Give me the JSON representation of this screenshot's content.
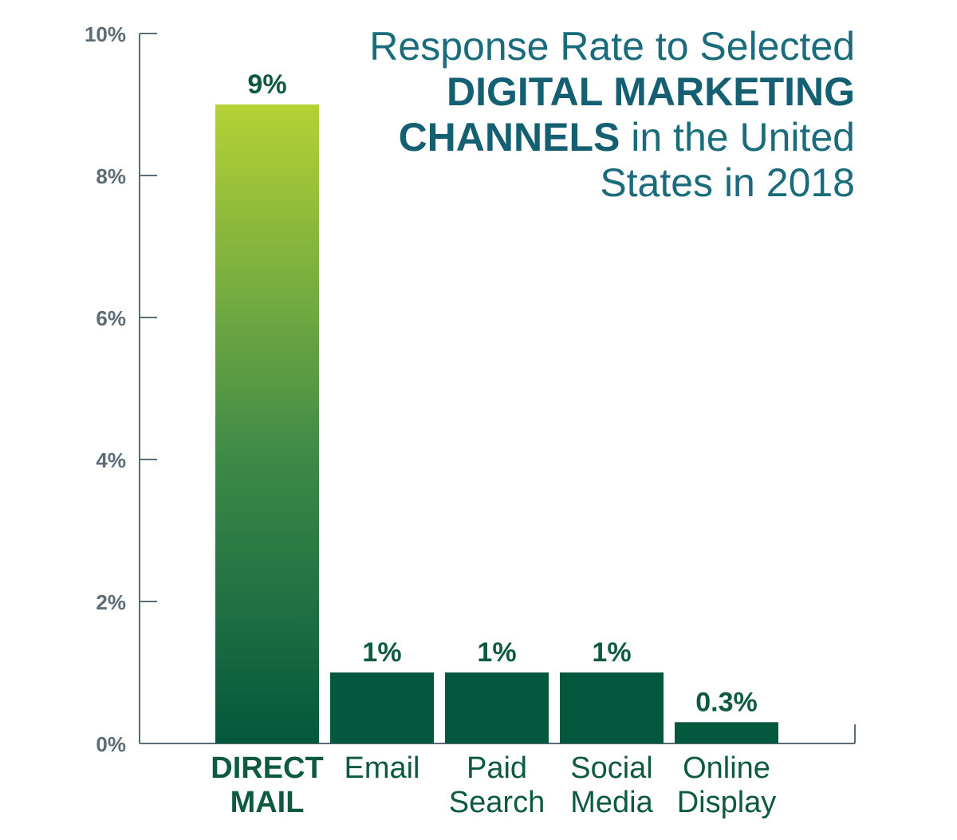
{
  "title": {
    "part1": "Response Rate to Selected ",
    "bold": "DIGITAL MARKETING CHANNELS",
    "part2": " in the United States in 2018"
  },
  "colors": {
    "bar": "#03583d",
    "gradient_top": "#b5d235",
    "gradient_bottom": "#03583d",
    "axis": "#5d6b76"
  },
  "chart_data": {
    "type": "bar",
    "title": "Response Rate to Selected DIGITAL MARKETING CHANNELS in the United States in 2018",
    "categories": [
      {
        "lines": [
          "DIRECT",
          "MAIL"
        ],
        "bold": true
      },
      {
        "lines": [
          "Email"
        ],
        "bold": false
      },
      {
        "lines": [
          "Paid",
          "Search"
        ],
        "bold": false
      },
      {
        "lines": [
          "Social",
          "Media"
        ],
        "bold": false
      },
      {
        "lines": [
          "Online",
          "Display"
        ],
        "bold": false
      }
    ],
    "values": [
      9,
      1,
      1,
      1,
      0.3
    ],
    "value_labels": [
      "9%",
      "1%",
      "1%",
      "1%",
      "0.3%"
    ],
    "ylim": [
      0,
      10
    ],
    "y_ticks": [
      0,
      2,
      4,
      6,
      8,
      10
    ],
    "y_tick_labels": [
      "0%",
      "2%",
      "4%",
      "6%",
      "8%",
      "10%"
    ],
    "grid": false,
    "xlabel": "",
    "ylabel": ""
  }
}
